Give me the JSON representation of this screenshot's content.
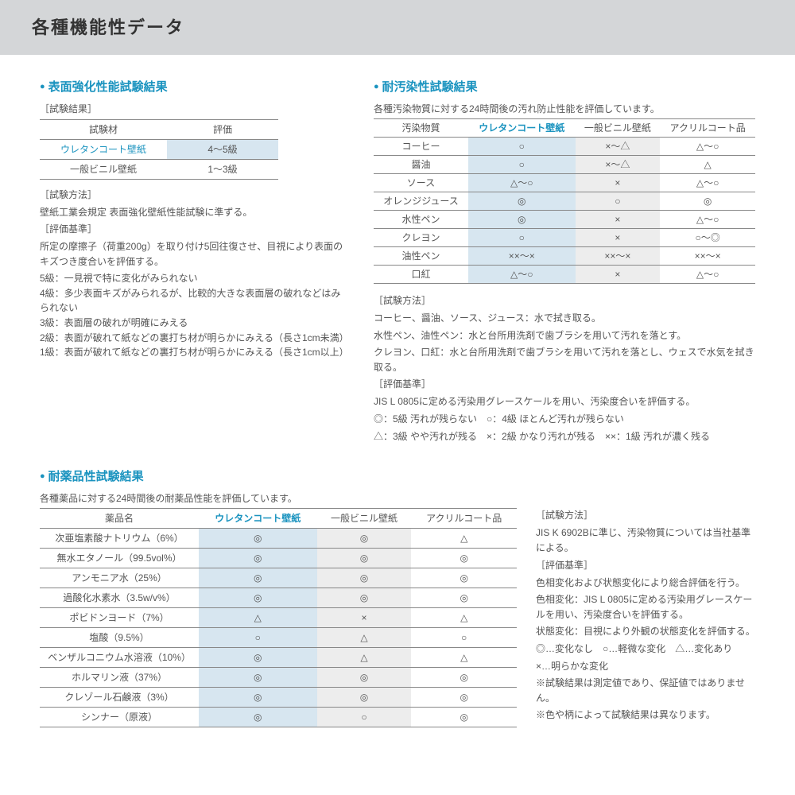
{
  "header": {
    "title": "各種機能性データ"
  },
  "surface": {
    "title": "表面強化性能試験結果",
    "result_label": "［試験結果］",
    "columns": [
      "試験材",
      "評価"
    ],
    "rows": [
      {
        "name": "ウレタンコート壁紙",
        "value": "4〜5級",
        "highlight": true
      },
      {
        "name": "一般ビニル壁紙",
        "value": "1〜3級",
        "highlight": false
      }
    ],
    "method_label": "［試験方法］",
    "method": "壁紙工業会規定 表面強化壁紙性能試験に準ずる。",
    "criteria_label": "［評価基準］",
    "criteria": "所定の摩擦子（荷重200g）を取り付け5回往復させ、目視により表面のキズつき度合いを評価する。",
    "grades": [
      "5級：一見視で特に変化がみられない",
      "4級：多少表面キズがみられるが、比較的大きな表面層の破れなどはみられない",
      "3級：表面層の破れが明確にみえる",
      "2級：表面が破れて紙などの裏打ち材が明らかにみえる（長さ1cm未満）",
      "1級：表面が破れて紙などの裏打ち材が明らかにみえる（長さ1cm以上）"
    ]
  },
  "stain": {
    "title": "耐汚染性試験結果",
    "intro": "各種汚染物質に対する24時間後の汚れ防止性能を評価しています。",
    "columns": [
      "汚染物質",
      "ウレタンコート壁紙",
      "一般ビニル壁紙",
      "アクリルコート品"
    ],
    "rows": [
      [
        "コーヒー",
        "○",
        "×〜△",
        "△〜○"
      ],
      [
        "醤油",
        "○",
        "×〜△",
        "△"
      ],
      [
        "ソース",
        "△〜○",
        "×",
        "△〜○"
      ],
      [
        "オレンジジュース",
        "◎",
        "○",
        "◎"
      ],
      [
        "水性ペン",
        "◎",
        "×",
        "△〜○"
      ],
      [
        "クレヨン",
        "○",
        "×",
        "○〜◎"
      ],
      [
        "油性ペン",
        "××〜×",
        "××〜×",
        "××〜×"
      ],
      [
        "口紅",
        "△〜○",
        "×",
        "△〜○"
      ]
    ],
    "method_label": "［試験方法］",
    "method_lines": [
      "コーヒー、醤油、ソース、ジュース：水で拭き取る。",
      "水性ペン、油性ペン：水と台所用洗剤で歯ブラシを用いて汚れを落とす。",
      "クレヨン、口紅：水と台所用洗剤で歯ブラシを用いて汚れを落とし、ウェスで水気を拭き取る。"
    ],
    "criteria_label": "［評価基準］",
    "criteria_lines": [
      "JIS L 0805に定める汚染用グレースケールを用い、汚染度合いを評価する。",
      "◎：5級 汚れが残らない　○：4級 ほとんど汚れが残らない",
      "△：3級 やや汚れが残る　×：2級 かなり汚れが残る　××：1級 汚れが濃く残る"
    ]
  },
  "chem": {
    "title": "耐薬品性試験結果",
    "intro": "各種薬品に対する24時間後の耐薬品性能を評価しています。",
    "columns": [
      "薬品名",
      "ウレタンコート壁紙",
      "一般ビニル壁紙",
      "アクリルコート品"
    ],
    "rows": [
      [
        "次亜塩素酸ナトリウム（6%）",
        "◎",
        "◎",
        "△"
      ],
      [
        "無水エタノール（99.5vol%）",
        "◎",
        "◎",
        "◎"
      ],
      [
        "アンモニア水（25%）",
        "◎",
        "◎",
        "◎"
      ],
      [
        "過酸化水素水（3.5w/v%）",
        "◎",
        "◎",
        "◎"
      ],
      [
        "ポビドンヨード（7%）",
        "△",
        "×",
        "△"
      ],
      [
        "塩酸（9.5%）",
        "○",
        "△",
        "○"
      ],
      [
        "ベンザルコニウム水溶液（10%）",
        "◎",
        "△",
        "△"
      ],
      [
        "ホルマリン液（37%）",
        "◎",
        "◎",
        "◎"
      ],
      [
        "クレゾール石鹸液（3%）",
        "◎",
        "◎",
        "◎"
      ],
      [
        "シンナー（原液）",
        "◎",
        "○",
        "◎"
      ]
    ],
    "method_label": "［試験方法］",
    "method": "JIS K 6902Bに準じ、汚染物質については当社基準による。",
    "criteria_label": "［評価基準］",
    "criteria_lines": [
      "色相変化および状態変化により総合評価を行う。",
      "色相変化：JIS L 0805に定める汚染用グレースケールを用い、汚染度合いを評価する。",
      "状態変化：目視により外観の状態変化を評価する。",
      "◎…変化なし　○…軽微な変化　△…変化あり",
      "×…明らかな変化",
      "※試験結果は測定値であり、保証値ではありません。",
      "※色や柄によって試験結果は異なります。"
    ]
  }
}
